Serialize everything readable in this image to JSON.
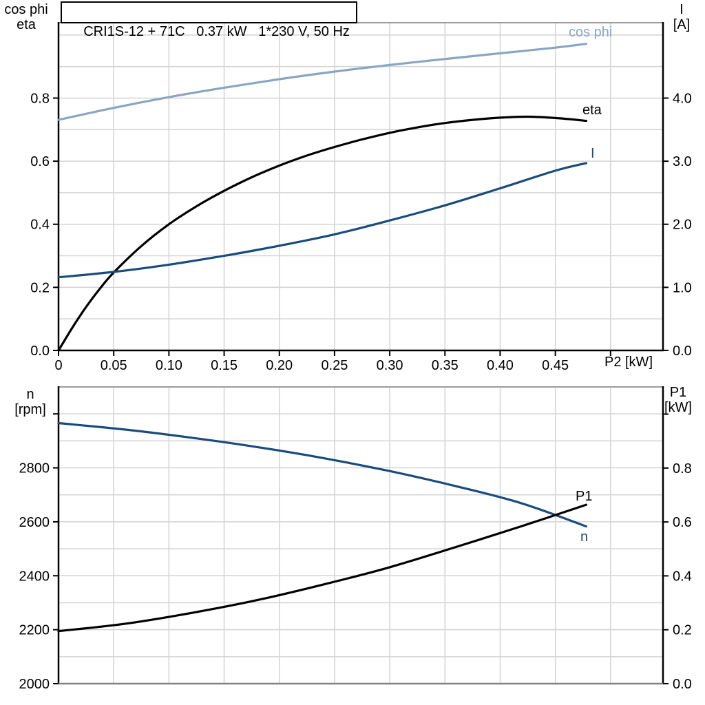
{
  "colors": {
    "light_blue": "#8aa5c3",
    "dark_blue": "#1a4b7d",
    "black": "#000000",
    "grid": "#d3d3d3",
    "frame_top": "#9c9c9c",
    "frame_bottom_gray": "#828282"
  },
  "chart_data": [
    {
      "type": "line",
      "title": "CRI1S-12 + 71C   0.37 kW   1*230 V, 50 Hz",
      "x_axis": {
        "label": "P2 [kW]",
        "min": 0,
        "max": 0.5475,
        "ticks": [
          0,
          0.05,
          0.1,
          0.15,
          0.2,
          0.25,
          0.3,
          0.35,
          0.4,
          0.45,
          0.5
        ],
        "tick_labels": [
          "0",
          "0.05",
          "0.10",
          "0.15",
          "0.20",
          "0.25",
          "0.30",
          "0.35",
          "0.40",
          "0.45",
          ""
        ],
        "grid_step": 0.05,
        "grid_end": 0.5
      },
      "left_axis": {
        "title_lines": [
          "cos phi",
          "eta"
        ],
        "min": 0,
        "max": 1.039,
        "ticks": [
          0,
          0.2,
          0.4,
          0.6,
          0.8
        ],
        "tick_labels": [
          "0.0",
          "0.2",
          "0.4",
          "0.6",
          "0.8"
        ],
        "grid_step": 0.1
      },
      "right_axis": {
        "title_lines": [
          "I",
          "[A]"
        ],
        "min": 0,
        "max": 5.195,
        "ticks": [
          0,
          1,
          2,
          3,
          4
        ],
        "tick_labels": [
          "0.0",
          "1.0",
          "2.0",
          "3.0",
          "4.0"
        ]
      },
      "series": [
        {
          "name": "cos phi",
          "axis": "left",
          "color": "light_blue",
          "points": [
            [
              0,
              0.731
            ],
            [
              0.05,
              0.769
            ],
            [
              0.1,
              0.803
            ],
            [
              0.15,
              0.833
            ],
            [
              0.2,
              0.86
            ],
            [
              0.25,
              0.884
            ],
            [
              0.3,
              0.905
            ],
            [
              0.35,
              0.924
            ],
            [
              0.4,
              0.942
            ],
            [
              0.45,
              0.96
            ],
            [
              0.478,
              0.972
            ]
          ]
        },
        {
          "name": "eta",
          "axis": "left",
          "color": "black",
          "points": [
            [
              0,
              0
            ],
            [
              0.0125,
              0.072
            ],
            [
              0.025,
              0.138
            ],
            [
              0.0375,
              0.196
            ],
            [
              0.05,
              0.247
            ],
            [
              0.075,
              0.331
            ],
            [
              0.1,
              0.4
            ],
            [
              0.125,
              0.457
            ],
            [
              0.15,
              0.506
            ],
            [
              0.175,
              0.549
            ],
            [
              0.2,
              0.586
            ],
            [
              0.225,
              0.618
            ],
            [
              0.25,
              0.645
            ],
            [
              0.275,
              0.669
            ],
            [
              0.3,
              0.69
            ],
            [
              0.325,
              0.707
            ],
            [
              0.35,
              0.721
            ],
            [
              0.375,
              0.731
            ],
            [
              0.4,
              0.738
            ],
            [
              0.425,
              0.741
            ],
            [
              0.45,
              0.737
            ],
            [
              0.478,
              0.728
            ]
          ]
        },
        {
          "name": "I",
          "axis": "right",
          "color": "dark_blue",
          "points": [
            [
              0,
              1.16
            ],
            [
              0.05,
              1.245
            ],
            [
              0.1,
              1.36
            ],
            [
              0.15,
              1.5
            ],
            [
              0.2,
              1.66
            ],
            [
              0.25,
              1.84
            ],
            [
              0.3,
              2.06
            ],
            [
              0.35,
              2.3
            ],
            [
              0.4,
              2.57
            ],
            [
              0.45,
              2.85
            ],
            [
              0.478,
              2.97
            ]
          ]
        }
      ]
    },
    {
      "type": "line",
      "title": "",
      "x_axis": {
        "label": "",
        "min": 0,
        "max": 0.5475,
        "ticks": [],
        "tick_labels": [],
        "grid_step": 0.05,
        "grid_end": 0.5
      },
      "left_axis": {
        "title_lines": [
          "n",
          "[rpm]"
        ],
        "min": 2000,
        "max": 3100,
        "ticks": [
          2000,
          2200,
          2400,
          2600,
          2800,
          3000
        ],
        "tick_labels": [
          "2000",
          "2200",
          "2400",
          "2600",
          "2800",
          ""
        ],
        "grid_step": 100
      },
      "right_axis": {
        "title_lines": [
          "P1",
          "[kW]"
        ],
        "min": 0,
        "max": 1.101,
        "ticks": [
          0,
          0.2,
          0.4,
          0.6,
          0.8,
          1.0
        ],
        "tick_labels": [
          "0.0",
          "0.2",
          "0.4",
          "0.6",
          "0.8",
          ""
        ]
      },
      "series": [
        {
          "name": "n",
          "axis": "left",
          "color": "dark_blue",
          "points": [
            [
              0,
              2966
            ],
            [
              0.06,
              2942
            ],
            [
              0.12,
              2912
            ],
            [
              0.18,
              2877
            ],
            [
              0.24,
              2836
            ],
            [
              0.3,
              2788
            ],
            [
              0.36,
              2732
            ],
            [
              0.42,
              2668
            ],
            [
              0.478,
              2583
            ]
          ]
        },
        {
          "name": "P1",
          "axis": "right",
          "color": "black",
          "points": [
            [
              0,
              0.195
            ],
            [
              0.06,
              0.222
            ],
            [
              0.12,
              0.262
            ],
            [
              0.18,
              0.31
            ],
            [
              0.24,
              0.368
            ],
            [
              0.3,
              0.432
            ],
            [
              0.36,
              0.507
            ],
            [
              0.42,
              0.585
            ],
            [
              0.478,
              0.664
            ]
          ]
        }
      ]
    }
  ]
}
